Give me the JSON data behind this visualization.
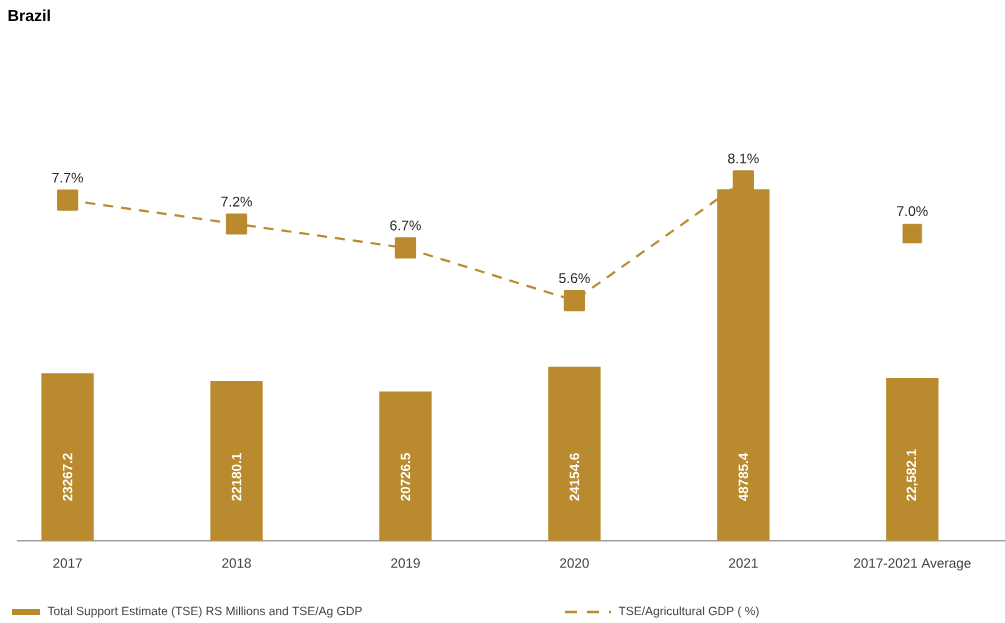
{
  "chart_data": {
    "type": "bar",
    "title": "Brazil",
    "categories": [
      "2017",
      "2018",
      "2019",
      "2020",
      "2021",
      "2017-2021 Average"
    ],
    "series": [
      {
        "name": "Total Support Estimate (TSE) RS Millions and TSE/Ag GDP",
        "color": "#b98b2e",
        "values": [
          23267.2,
          22180.1,
          20726.5,
          24154.6,
          48785.4,
          22582.1
        ],
        "value_labels": [
          "23267.2",
          "22180.1",
          "20726.5",
          "24154.6",
          "48785.4",
          "22,582.1"
        ]
      },
      {
        "name": "TSE/Agricultural GDP ( %)",
        "type": "line",
        "axis": "y2",
        "color": "#b98b2e",
        "values": [
          7.7,
          7.2,
          6.7,
          5.6,
          8.1,
          null
        ],
        "value_labels": [
          "7.7%",
          "7.2%",
          "6.7%",
          "5.6%",
          "8.1%",
          null
        ]
      },
      {
        "type": "scatter",
        "axis": "y2",
        "color": "#b98b2e",
        "values": [
          null,
          null,
          null,
          null,
          null,
          7.0
        ],
        "value_labels": [
          null,
          null,
          null,
          null,
          null,
          "7.0%"
        ]
      }
    ],
    "marker": "square",
    "line_style": "dashed",
    "legend": "bottom"
  }
}
